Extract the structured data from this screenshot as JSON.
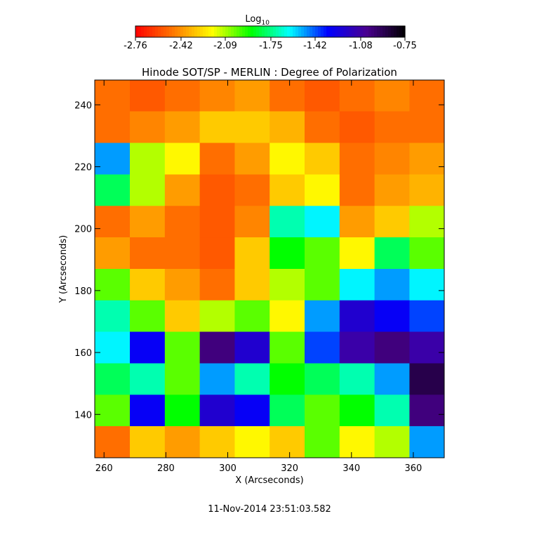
{
  "chart_data": {
    "type": "heatmap",
    "title": "Hinode SOT/SP - MERLIN : Degree of Polarization",
    "x_label": "X (Arcseconds)",
    "y_label": "Y (Arcseconds)",
    "footer": "11-Nov-2014 23:51:03.582",
    "colorbar_label": "Log",
    "colorbar_label_sub": "10",
    "colorbar_lim": [
      -2.76,
      -0.75
    ],
    "colorbar_ticks": [
      {
        "value": -2.76,
        "label": "-2.76"
      },
      {
        "value": -2.42,
        "label": "-2.42"
      },
      {
        "value": -2.09,
        "label": "-2.09"
      },
      {
        "value": -1.75,
        "label": "-1.75"
      },
      {
        "value": -1.42,
        "label": "-1.42"
      },
      {
        "value": -1.08,
        "label": "-1.08"
      },
      {
        "value": -0.75,
        "label": "-0.75"
      }
    ],
    "colormap": [
      "#ff0000",
      "#ff7a00",
      "#ffff00",
      "#00ff00",
      "#00ffff",
      "#0000ff",
      "#4a0090",
      "#000000"
    ],
    "xlim": [
      257,
      370
    ],
    "ylim": [
      126,
      248
    ],
    "xticks": [
      260,
      280,
      300,
      320,
      340,
      360
    ],
    "yticks": [
      140,
      160,
      180,
      200,
      220,
      240
    ],
    "x": [
      262.7,
      274,
      285.3,
      296.6,
      307.9,
      319.2,
      330.5,
      341.8,
      353.1,
      364.4
    ],
    "y": [
      243,
      232.8,
      222.6,
      212.4,
      202.3,
      192.1,
      181.9,
      171.8,
      161.6,
      151.4,
      141.3,
      131.1
    ],
    "z": [
      [
        -2.5,
        -2.55,
        -2.5,
        -2.45,
        -2.4,
        -2.5,
        -2.55,
        -2.5,
        -2.45,
        -2.5
      ],
      [
        -2.5,
        -2.45,
        -2.4,
        -2.3,
        -2.3,
        -2.35,
        -2.5,
        -2.55,
        -2.5,
        -2.5
      ],
      [
        -1.5,
        -2.1,
        -2.2,
        -2.5,
        -2.4,
        -2.2,
        -2.3,
        -2.5,
        -2.45,
        -2.4
      ],
      [
        -1.8,
        -2.1,
        -2.4,
        -2.55,
        -2.5,
        -2.3,
        -2.2,
        -2.5,
        -2.4,
        -2.35
      ],
      [
        -2.5,
        -2.4,
        -2.5,
        -2.55,
        -2.45,
        -1.7,
        -1.6,
        -2.4,
        -2.3,
        -2.1
      ],
      [
        -2.4,
        -2.5,
        -2.5,
        -2.55,
        -2.3,
        -1.9,
        -2.0,
        -2.2,
        -1.8,
        -2.0
      ],
      [
        -2.0,
        -2.3,
        -2.4,
        -2.5,
        -2.3,
        -2.1,
        -2.0,
        -1.6,
        -1.5,
        -1.6
      ],
      [
        -1.7,
        -2.0,
        -2.3,
        -2.1,
        -2.0,
        -2.2,
        -1.5,
        -1.2,
        -1.3,
        -1.4
      ],
      [
        -1.6,
        -1.3,
        -2.0,
        -1.0,
        -1.2,
        -2.0,
        -1.4,
        -1.1,
        -1.0,
        -1.1
      ],
      [
        -1.8,
        -1.7,
        -2.0,
        -1.5,
        -1.7,
        -1.9,
        -1.8,
        -1.7,
        -1.5,
        -0.9
      ],
      [
        -2.0,
        -1.3,
        -1.9,
        -1.2,
        -1.3,
        -1.8,
        -2.0,
        -1.9,
        -1.7,
        -1.0
      ],
      [
        -2.5,
        -2.3,
        -2.4,
        -2.3,
        -2.2,
        -2.3,
        -2.0,
        -2.2,
        -2.1,
        -1.5
      ]
    ]
  }
}
